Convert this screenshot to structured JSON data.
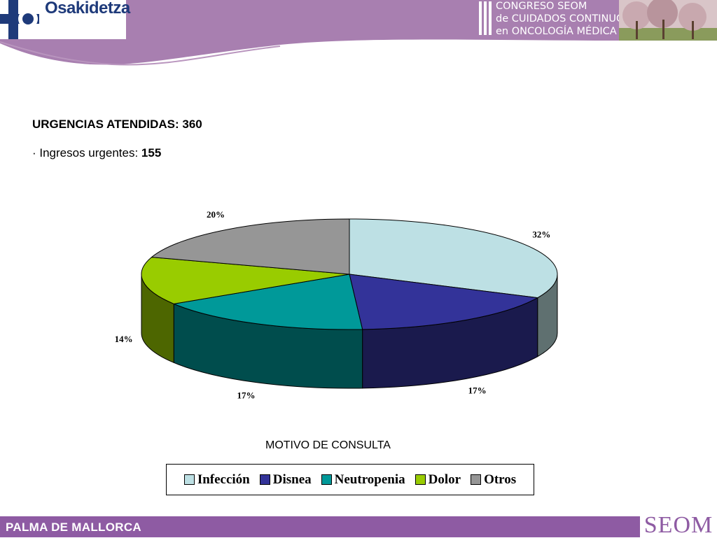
{
  "header": {
    "logo_text": "Osakidetza",
    "congreso_lines": [
      "CONGRESO SEOM",
      "de CUIDADOS CONTINUOS",
      "en ONCOLOGÍA MÉDICA"
    ]
  },
  "stats": {
    "urgencias_label": "URGENCIAS ATENDIDAS: 360",
    "ingresos_prefix": "· Ingresos urgentes: ",
    "ingresos_value": "155"
  },
  "chart_data": {
    "type": "pie",
    "title": "MOTIVO DE CONSULTA",
    "categories": [
      "Infección",
      "Disnea",
      "Neutropenia",
      "Dolor",
      "Otros"
    ],
    "values": [
      32,
      17,
      17,
      14,
      20
    ],
    "labels": [
      "32%",
      "17%",
      "17%",
      "14%",
      "20%"
    ],
    "colors": [
      "#bde0e4",
      "#333399",
      "#009999",
      "#99cc00",
      "#969696"
    ],
    "side_colors": [
      "#5f7070",
      "#1a1a4d",
      "#004d4d",
      "#4d6600",
      "#4b4b4b"
    ],
    "legend_position": "bottom",
    "three_d": true
  },
  "footer": {
    "location": "PALMA DE MALLORCA",
    "seom": "SEOM"
  }
}
